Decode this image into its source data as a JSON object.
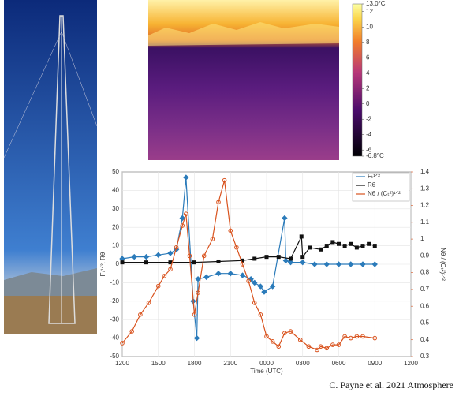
{
  "chart_data": {
    "type": "line",
    "x_label": "Time (UTC)",
    "y_label": "Fₜ¹ᐟ², Rθ",
    "y2_label": "Nθ / (Cₜ²)¹ᐟ²",
    "xlim": [
      0,
      24
    ],
    "xticks": [
      {
        "value": 0,
        "label": "1200"
      },
      {
        "value": 3,
        "label": "1500"
      },
      {
        "value": 6,
        "label": "1800"
      },
      {
        "value": 9,
        "label": "2100"
      },
      {
        "value": 12,
        "label": "0000"
      },
      {
        "value": 15,
        "label": "0300"
      },
      {
        "value": 18,
        "label": "0600"
      },
      {
        "value": 21,
        "label": "0900"
      },
      {
        "value": 24,
        "label": "1200"
      }
    ],
    "ylim": [
      -50,
      50
    ],
    "yticks": [
      -50,
      -40,
      -30,
      -20,
      -10,
      0,
      10,
      20,
      30,
      40,
      50
    ],
    "y2lim": [
      0.3,
      1.4
    ],
    "y2ticks": [
      0.3,
      0.4,
      0.5,
      0.6,
      0.7,
      0.8,
      0.9,
      1,
      1.1,
      1.2,
      1.3,
      1.4
    ],
    "grid": true,
    "legend": "upper right",
    "series": [
      {
        "name": "Fₜ¹ᐟ²",
        "color": "#2b7bba",
        "marker": "diamond",
        "x": [
          0,
          1,
          2,
          3,
          4,
          4.5,
          5,
          5.3,
          5.9,
          6.2,
          6.3,
          7,
          8,
          9,
          10,
          10.7,
          11,
          11.5,
          11.8,
          12.5,
          13.5,
          13.6,
          14,
          15,
          16,
          17,
          18,
          19,
          20,
          21
        ],
        "values": [
          3,
          4,
          4,
          5,
          6,
          8,
          25,
          47,
          -20,
          -40,
          -8,
          -7,
          -5,
          -5,
          -6,
          -8,
          -10,
          -12,
          -15,
          -12,
          25,
          2,
          1,
          1,
          0,
          0,
          0,
          0,
          0,
          0
        ]
      },
      {
        "name": "Rθ",
        "color": "#111111",
        "marker": "square",
        "x": [
          0,
          2,
          4,
          6,
          8,
          10,
          11,
          12,
          13,
          14,
          14.9,
          15,
          15.6,
          16.5,
          17,
          17.5,
          18,
          18.5,
          19,
          19.5,
          20,
          20.5,
          21
        ],
        "values": [
          1,
          1,
          1,
          1,
          1.5,
          2,
          3,
          4,
          4,
          3,
          15,
          4,
          9,
          8,
          10,
          12,
          11,
          10,
          11,
          9,
          10,
          11,
          10
        ]
      },
      {
        "name": "Nθ / (Cₜ²)¹ᐟ²",
        "color": "#d9531e",
        "marker": "circle",
        "axis": "y2",
        "x": [
          0,
          0.8,
          1.5,
          2.2,
          3,
          3.5,
          4,
          4.5,
          5,
          5.3,
          5.6,
          6,
          6.3,
          6.8,
          7.5,
          8,
          8.5,
          9,
          9.5,
          10,
          10.5,
          11,
          11.5,
          12,
          12.5,
          13,
          13.5,
          14,
          14.8,
          15.5,
          16.2,
          16.5,
          17,
          17.5,
          18,
          18.5,
          19,
          19.5,
          20,
          21
        ],
        "values": [
          0.38,
          0.45,
          0.55,
          0.62,
          0.72,
          0.78,
          0.82,
          0.95,
          1.08,
          1.15,
          0.9,
          0.55,
          0.68,
          0.9,
          1.0,
          1.22,
          1.35,
          1.05,
          0.95,
          0.85,
          0.75,
          0.62,
          0.55,
          0.42,
          0.39,
          0.36,
          0.44,
          0.45,
          0.4,
          0.36,
          0.34,
          0.36,
          0.35,
          0.37,
          0.37,
          0.42,
          0.41,
          0.42,
          0.42,
          0.41
        ]
      }
    ]
  },
  "thermal_colorbar": {
    "lim": [
      -6.8,
      13
    ],
    "ticks": [
      {
        "value": -6.8,
        "label": "-6.8°C"
      },
      -6,
      -4,
      -2,
      0,
      2,
      4,
      6,
      8,
      10,
      12,
      {
        "value": 13,
        "label": "13.0°C"
      }
    ]
  },
  "caption": "C. Payne et al. 2021 Atmosphere"
}
